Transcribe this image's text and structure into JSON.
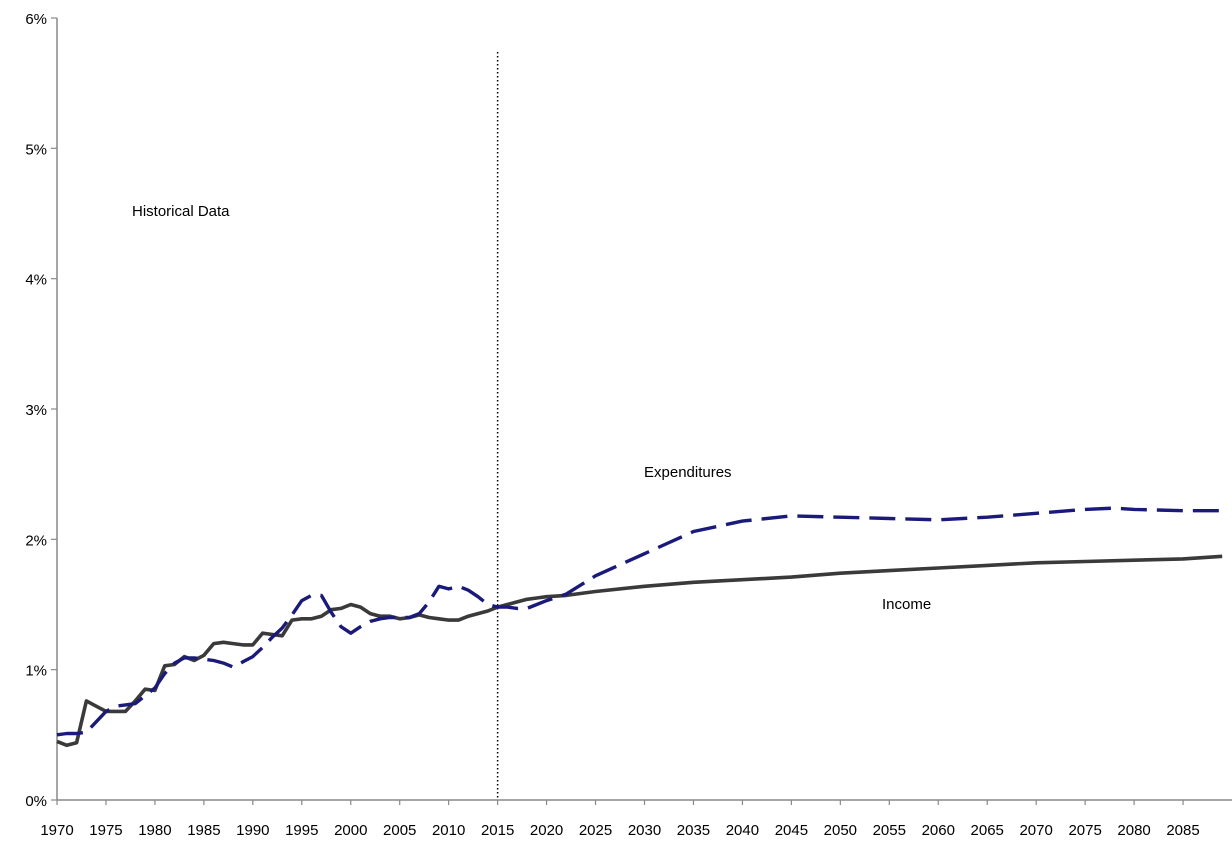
{
  "chart_data": {
    "type": "line",
    "title": "",
    "xlabel": "",
    "ylabel": "",
    "xlim": [
      1970,
      2090
    ],
    "ylim": [
      0,
      6
    ],
    "grid": false,
    "y_ticks": [
      0,
      1,
      2,
      3,
      4,
      5,
      6
    ],
    "y_tick_labels": [
      "0%",
      "1%",
      "2%",
      "3%",
      "4%",
      "5%",
      "6%"
    ],
    "x_ticks": [
      1970,
      1975,
      1980,
      1985,
      1990,
      1995,
      2000,
      2005,
      2010,
      2015,
      2020,
      2025,
      2030,
      2035,
      2040,
      2045,
      2050,
      2055,
      2060,
      2065,
      2070,
      2075,
      2080,
      2085
    ],
    "x_tick_labels": [
      "1970",
      "1975",
      "1980",
      "1985",
      "1990",
      "1995",
      "2000",
      "2005",
      "2010",
      "2015",
      "2020",
      "2025",
      "2030",
      "2035",
      "2040",
      "2045",
      "2050",
      "2055",
      "2060",
      "2065",
      "2070",
      "2075",
      "2080",
      "2085"
    ],
    "divider_x": 2015,
    "annotations": {
      "historical": "Historical Data",
      "expenditures": "Expenditures",
      "income": "Income"
    },
    "series": [
      {
        "name": "Income",
        "color": "#3a3a3a",
        "style": "solid",
        "x": [
          1970,
          1971,
          1972,
          1973,
          1974,
          1975,
          1976,
          1977,
          1978,
          1979,
          1980,
          1981,
          1982,
          1983,
          1984,
          1985,
          1986,
          1987,
          1988,
          1989,
          1990,
          1991,
          1992,
          1993,
          1994,
          1995,
          1996,
          1997,
          1998,
          1999,
          2000,
          2001,
          2002,
          2003,
          2004,
          2005,
          2006,
          2007,
          2008,
          2009,
          2010,
          2011,
          2012,
          2013,
          2014,
          2015,
          2016,
          2017,
          2018,
          2019,
          2020,
          2022,
          2025,
          2030,
          2035,
          2040,
          2045,
          2050,
          2055,
          2060,
          2065,
          2070,
          2075,
          2080,
          2085,
          2089
        ],
        "y": [
          0.45,
          0.42,
          0.44,
          0.76,
          0.72,
          0.68,
          0.68,
          0.68,
          0.76,
          0.85,
          0.84,
          1.03,
          1.04,
          1.1,
          1.07,
          1.11,
          1.2,
          1.21,
          1.2,
          1.19,
          1.19,
          1.28,
          1.27,
          1.26,
          1.38,
          1.39,
          1.39,
          1.41,
          1.46,
          1.47,
          1.5,
          1.48,
          1.43,
          1.41,
          1.41,
          1.39,
          1.4,
          1.42,
          1.4,
          1.39,
          1.38,
          1.38,
          1.41,
          1.43,
          1.45,
          1.48,
          1.5,
          1.52,
          1.54,
          1.55,
          1.56,
          1.57,
          1.6,
          1.64,
          1.67,
          1.69,
          1.71,
          1.74,
          1.76,
          1.78,
          1.8,
          1.82,
          1.83,
          1.84,
          1.85,
          1.87
        ]
      },
      {
        "name": "Expenditures",
        "color": "#1a1a7a",
        "style": "dashed",
        "x": [
          1970,
          1971,
          1972,
          1973,
          1974,
          1975,
          1976,
          1977,
          1978,
          1979,
          1980,
          1981,
          1982,
          1983,
          1984,
          1985,
          1986,
          1987,
          1988,
          1989,
          1990,
          1991,
          1992,
          1993,
          1994,
          1995,
          1996,
          1997,
          1998,
          1999,
          2000,
          2001,
          2002,
          2003,
          2004,
          2005,
          2006,
          2007,
          2008,
          2009,
          2010,
          2011,
          2012,
          2013,
          2014,
          2015,
          2016,
          2017,
          2018,
          2019,
          2020,
          2022,
          2025,
          2030,
          2035,
          2040,
          2045,
          2050,
          2055,
          2060,
          2065,
          2070,
          2075,
          2078,
          2080,
          2085,
          2089
        ],
        "y": [
          0.5,
          0.51,
          0.51,
          0.52,
          0.6,
          0.68,
          0.72,
          0.73,
          0.74,
          0.8,
          0.86,
          0.97,
          1.05,
          1.09,
          1.09,
          1.08,
          1.07,
          1.05,
          1.02,
          1.06,
          1.1,
          1.17,
          1.25,
          1.32,
          1.42,
          1.53,
          1.57,
          1.57,
          1.44,
          1.33,
          1.28,
          1.33,
          1.37,
          1.39,
          1.4,
          1.4,
          1.4,
          1.43,
          1.52,
          1.64,
          1.62,
          1.64,
          1.61,
          1.56,
          1.5,
          1.48,
          1.48,
          1.47,
          1.47,
          1.5,
          1.53,
          1.58,
          1.72,
          1.89,
          2.06,
          2.14,
          2.18,
          2.17,
          2.16,
          2.15,
          2.17,
          2.2,
          2.23,
          2.24,
          2.23,
          2.22,
          2.22
        ]
      }
    ]
  }
}
